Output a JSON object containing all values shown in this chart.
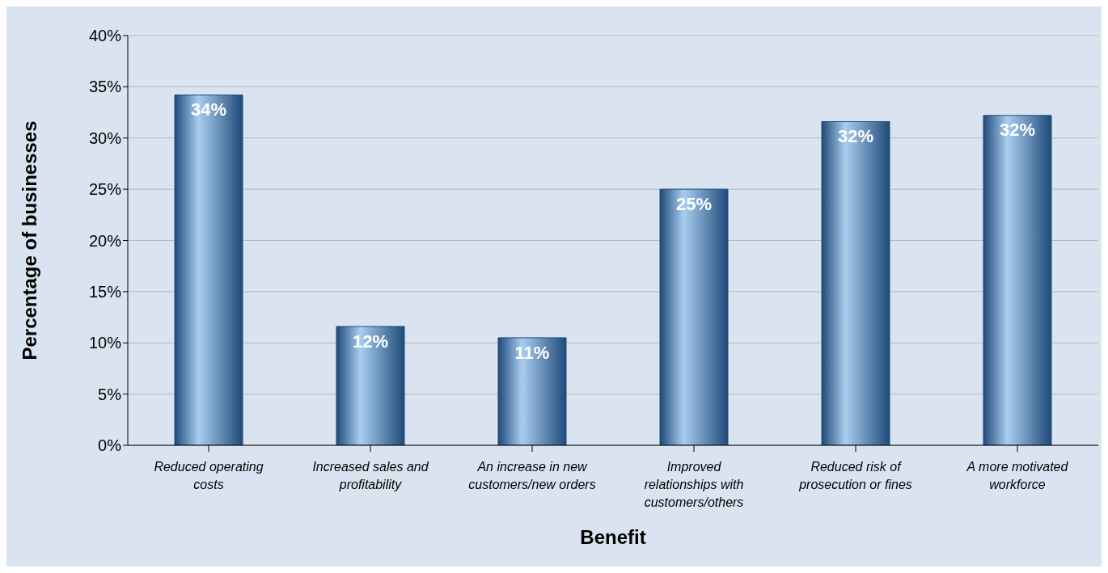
{
  "chart_data": {
    "type": "bar",
    "xlabel": "Benefit",
    "ylabel": "Percentage of businesses",
    "categories": [
      "Reduced operating costs",
      "Increased sales and profitability",
      "An increase in new customers/new orders",
      "Improved relationships with customers/others",
      "Reduced risk of prosecution or fines",
      "A more motivated workforce"
    ],
    "values": [
      34.2,
      11.6,
      10.5,
      25.0,
      31.6,
      32.2
    ],
    "value_labels": [
      "34%",
      "12%",
      "11%",
      "25%",
      "32%",
      "32%"
    ],
    "color": "#1f4a7a",
    "ylim": [
      0,
      40
    ],
    "yticks": [
      {
        "value": 0,
        "label": "0%"
      },
      {
        "value": 5,
        "label": "5%"
      },
      {
        "value": 10,
        "label": "10%"
      },
      {
        "value": 15,
        "label": "15%"
      },
      {
        "value": 20,
        "label": "20%"
      },
      {
        "value": 25,
        "label": "25%"
      },
      {
        "value": 30,
        "label": "30%"
      },
      {
        "value": 35,
        "label": "35%"
      },
      {
        "value": 40,
        "label": "40%"
      }
    ],
    "grid": "y"
  }
}
